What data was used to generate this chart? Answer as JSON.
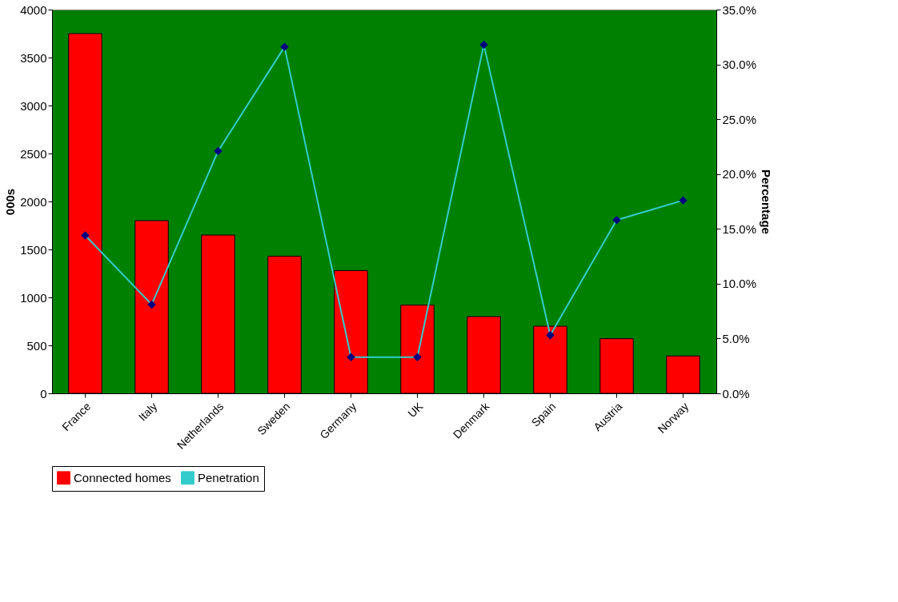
{
  "chart_data": {
    "type": "bar",
    "categories": [
      "France",
      "Italy",
      "Netherlands",
      "Sweden",
      "Germany",
      "UK",
      "Denmark",
      "Spain",
      "Austria",
      "Norway"
    ],
    "series": [
      {
        "name": "Connected homes",
        "color": "#ff0000",
        "values": [
          3750,
          1800,
          1650,
          1430,
          1280,
          920,
          800,
          700,
          570,
          390
        ]
      },
      {
        "name": "Penetration",
        "type": "line",
        "axis": "y2",
        "color": "#33cccc",
        "values": [
          14.4,
          8.1,
          22.1,
          31.6,
          3.3,
          3.3,
          31.8,
          5.3,
          15.8,
          17.6
        ]
      }
    ],
    "ylabel": "000s",
    "y2label": "Percentage",
    "ylim": [
      0,
      4000
    ],
    "yticks": [
      0,
      500,
      1000,
      1500,
      2000,
      2500,
      3000,
      3500,
      4000
    ],
    "y2lim": [
      0,
      35
    ],
    "y2ticks": [
      {
        "value": 0,
        "label": "0.0%"
      },
      {
        "value": 5,
        "label": "5.0%"
      },
      {
        "value": 10,
        "label": "10.0%"
      },
      {
        "value": 15,
        "label": "15.0%"
      },
      {
        "value": 20,
        "label": "20.0%"
      },
      {
        "value": 25,
        "label": "25.0%"
      },
      {
        "value": 30,
        "label": "30.0%"
      },
      {
        "value": 35,
        "label": "35.0%"
      }
    ],
    "marker": "diamond",
    "grid": false,
    "legend": "bottom"
  }
}
